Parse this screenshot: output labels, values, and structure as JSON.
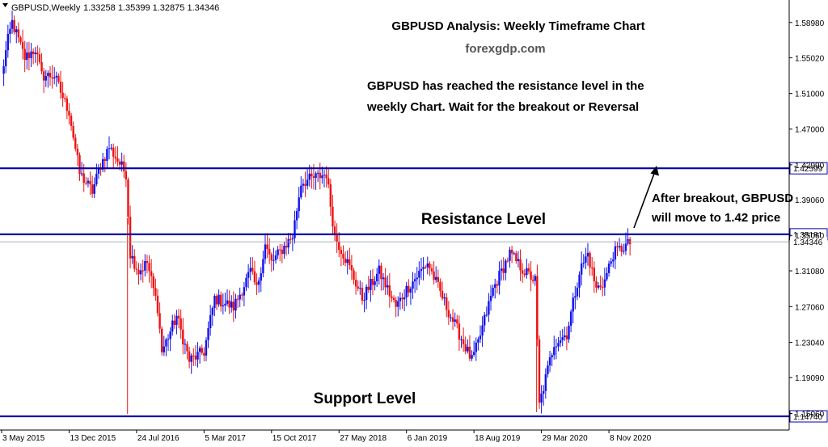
{
  "header": {
    "symbol_label": "GBPUSD,Weekly",
    "ohlc": "1.33258 1.35399 1.32875 1.34346",
    "menu_icon": "triangle-down-icon"
  },
  "annotations": {
    "title": "GBPUSD Analysis: Weekly Timeframe Chart",
    "site": "forexgdp.com",
    "note_line1": "GBPUSD has reached the resistance level in the",
    "note_line2": "weekly Chart. Wait for the breakout or Reversal",
    "resistance_label": "Resistance Level",
    "support_label": "Support Level",
    "breakout_line1": "After breakout, GBPUSD",
    "breakout_line2": "will move to 1.42 price"
  },
  "colors": {
    "bull": "#1111ee",
    "bear": "#ee1111",
    "level_line": "#0000aa",
    "current_line": "#8899aa",
    "axis": "#000000",
    "title_text": "#000000",
    "site_text": "#555555",
    "label_bg": "#ffffff"
  },
  "chart_data": {
    "type": "candlestick",
    "symbol": "GBPUSD",
    "timeframe": "Weekly",
    "ylim": [
      1.132,
      1.615
    ],
    "y_ticks": [
      "1.58980",
      "1.55020",
      "1.51000",
      "1.47000",
      "1.42990",
      "1.39060",
      "1.35060",
      "1.31080",
      "1.27060",
      "1.23040",
      "1.19090",
      "1.15060"
    ],
    "x_ticks": [
      "3 May 2015",
      "13 Dec 2015",
      "24 Jul 2016",
      "5 Mar 2017",
      "15 Oct 2017",
      "27 May 2018",
      "6 Jan 2019",
      "18 Aug 2019",
      "29 Mar 2020",
      "8 Nov 2020"
    ],
    "x_start": "3 May 2015",
    "x_end": "22 Jan 2021",
    "levels": [
      {
        "name": "Resistance high",
        "value": 1.42599,
        "label": "1.42599"
      },
      {
        "name": "Resistance Level",
        "value": 1.35181,
        "label": "1.35181"
      },
      {
        "name": "Support Level",
        "value": 1.1474,
        "label": "1.14740"
      }
    ],
    "current_price": {
      "value": 1.34346,
      "label": "1.34346"
    },
    "arrow_target_price": 1.42,
    "anchors": [
      [
        "3 May 2015",
        1.53
      ],
      [
        "24 May 2015",
        1.57
      ],
      [
        "7 Jun 2015",
        1.59
      ],
      [
        "19 Jul 2015",
        1.55
      ],
      [
        "23 Aug 2015",
        1.56
      ],
      [
        "13 Sep 2015",
        1.53
      ],
      [
        "25 Oct 2015",
        1.53
      ],
      [
        "29 Nov 2015",
        1.5
      ],
      [
        "13 Dec 2015",
        1.49
      ],
      [
        "17 Jan 2016",
        1.42
      ],
      [
        "28 Feb 2016",
        1.4
      ],
      [
        "27 Mar 2016",
        1.43
      ],
      [
        "24 Apr 2016",
        1.45
      ],
      [
        "19 Jun 2016",
        1.42
      ],
      [
        "3 Jul 2016",
        1.33
      ],
      [
        "31 Jul 2016",
        1.31
      ],
      [
        "28 Aug 2016",
        1.32
      ],
      [
        "2 Oct 2016",
        1.27
      ],
      [
        "16 Oct 2016",
        1.22
      ],
      [
        "4 Dec 2016",
        1.26
      ],
      [
        "15 Jan 2017",
        1.21
      ],
      [
        "5 Mar 2017",
        1.22
      ],
      [
        "9 Apr 2017",
        1.28
      ],
      [
        "11 Jun 2017",
        1.27
      ],
      [
        "6 Aug 2017",
        1.31
      ],
      [
        "27 Aug 2017",
        1.29
      ],
      [
        "24 Sep 2017",
        1.34
      ],
      [
        "15 Oct 2017",
        1.32
      ],
      [
        "24 Dec 2017",
        1.35
      ],
      [
        "21 Jan 2018",
        1.41
      ],
      [
        "15 Apr 2018",
        1.42
      ],
      [
        "13 May 2018",
        1.35
      ],
      [
        "24 Jun 2018",
        1.32
      ],
      [
        "12 Aug 2018",
        1.28
      ],
      [
        "7 Oct 2018",
        1.31
      ],
      [
        "2 Dec 2018",
        1.27
      ],
      [
        "6 Jan 2019",
        1.29
      ],
      [
        "17 Mar 2019",
        1.32
      ],
      [
        "19 May 2019",
        1.27
      ],
      [
        "11 Aug 2019",
        1.21
      ],
      [
        "1 Sep 2019",
        1.23
      ],
      [
        "20 Oct 2019",
        1.29
      ],
      [
        "15 Dec 2019",
        1.33
      ],
      [
        "2 Feb 2020",
        1.31
      ],
      [
        "8 Mar 2020",
        1.3
      ],
      [
        "22 Mar 2020",
        1.16
      ],
      [
        "10 May 2020",
        1.23
      ],
      [
        "21 Jun 2020",
        1.24
      ],
      [
        "2 Aug 2020",
        1.31
      ],
      [
        "30 Aug 2020",
        1.33
      ],
      [
        "27 Sep 2020",
        1.29
      ],
      [
        "25 Oct 2020",
        1.3
      ],
      [
        "22 Nov 2020",
        1.33
      ],
      [
        "22 Jan 2021",
        1.343
      ]
    ]
  }
}
